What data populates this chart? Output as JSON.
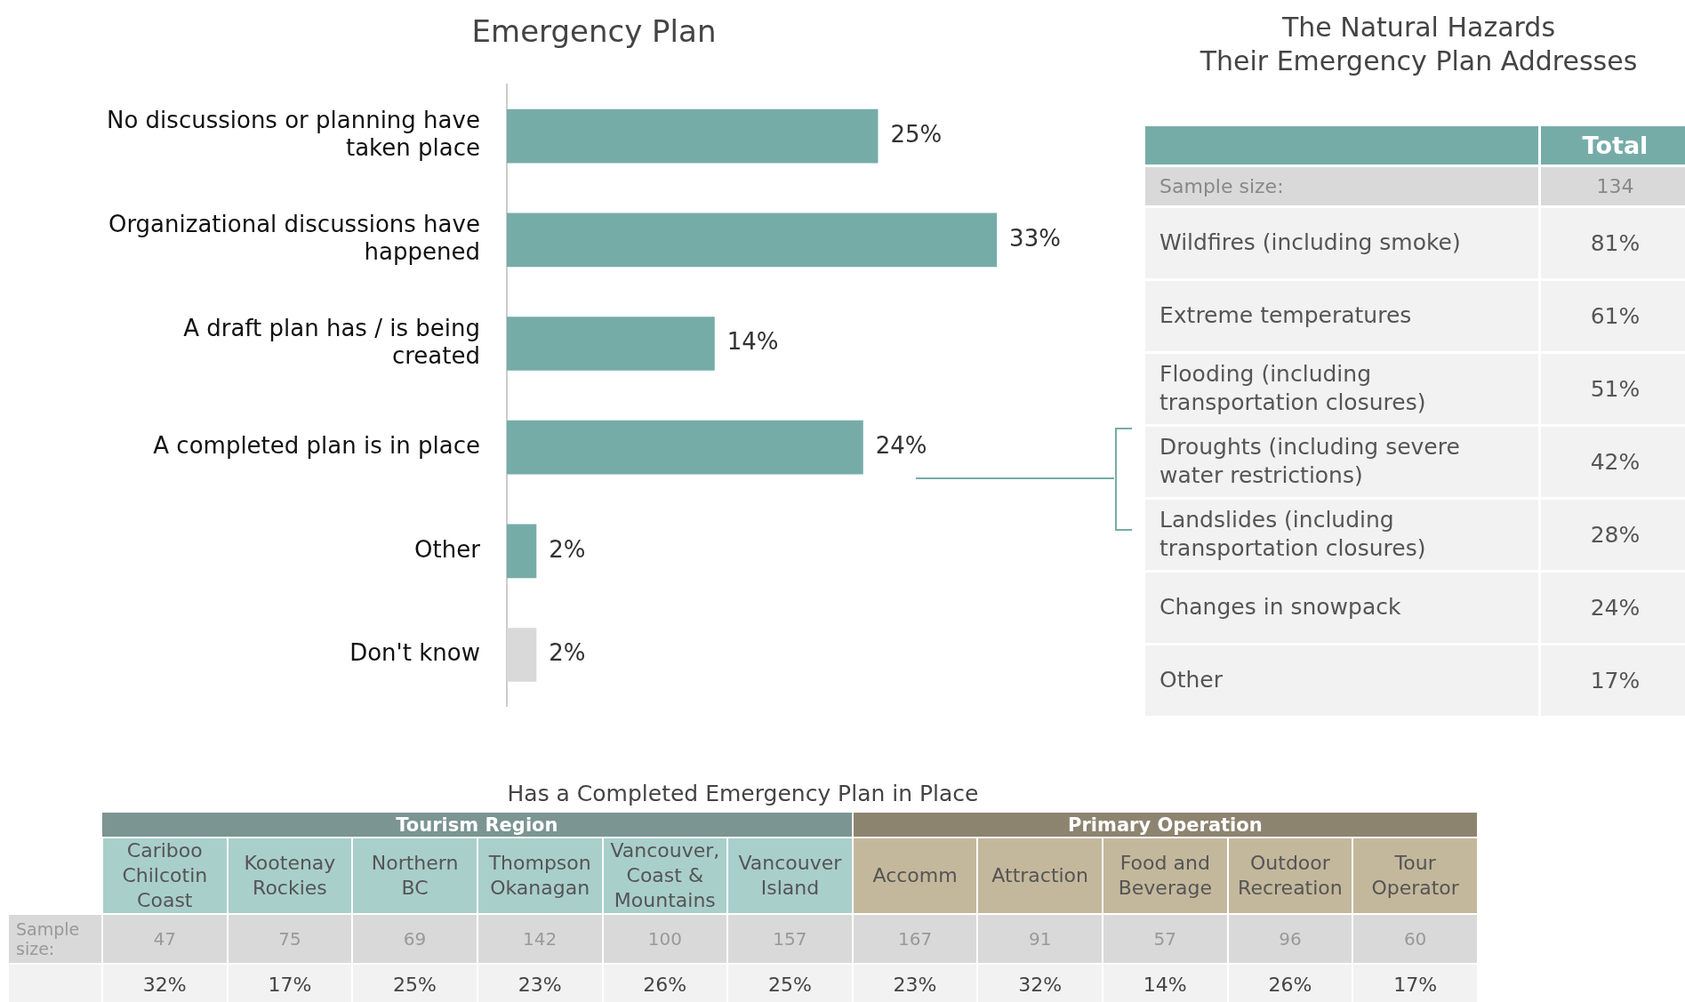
{
  "chart_data": [
    {
      "type": "bar",
      "title": "Emergency Plan",
      "orientation": "horizontal",
      "categories": [
        "No discussions or planning have taken place",
        "Organizational discussions have happened",
        "A draft plan has / is being created",
        "A completed plan is in place",
        "Other",
        "Don't know"
      ],
      "values": [
        25,
        33,
        14,
        24,
        2,
        2
      ],
      "colors": [
        "#76aca8",
        "#76aca8",
        "#76aca8",
        "#76aca8",
        "#76aca8",
        "#d9d9d9"
      ],
      "value_labels": [
        "25%",
        "33%",
        "14%",
        "24%",
        "2%",
        "2%"
      ]
    },
    {
      "type": "other",
      "title": "The Natural Hazards\nTheir Emergency Plan Addresses",
      "categories": [
        "Wildfires (including smoke)",
        "Extreme temperatures",
        "Flooding (including transportation closures)",
        "Droughts (including severe water restrictions)",
        "Landslides (including transportation closures)",
        "Changes in snowpack",
        "Other"
      ],
      "series": [
        {
          "name": "Total",
          "values": [
            81,
            61,
            51,
            42,
            28,
            24,
            17
          ],
          "value_labels": [
            "81%",
            "61%",
            "51%",
            "42%",
            "28%",
            "24%",
            "17%"
          ]
        }
      ],
      "annotations": [
        "Sample size:",
        "134"
      ]
    },
    {
      "type": "other",
      "title": "Has a Completed Emergency Plan in Place",
      "categories": [
        "Cariboo Chilcotin Coast",
        "Kootenay Rockies",
        "Northern BC",
        "Thompson Okanagan",
        "Vancouver, Coast & Mountains",
        "Vancouver Island",
        "Accomm",
        "Attraction",
        "Food and Beverage",
        "Outdoor Recreation",
        "Tour Operator"
      ],
      "colors": [
        "#a9cfcb",
        "#a9cfcb",
        "#a9cfcb",
        "#a9cfcb",
        "#a9cfcb",
        "#a9cfcb",
        "#c4b89c",
        "#c4b89c",
        "#c4b89c",
        "#c4b89c",
        "#c4b89c"
      ],
      "annotations": [
        "Tourism Region",
        "Primary Operation"
      ],
      "data_labels": true,
      "series": [
        {
          "name": "Sample size:",
          "values": [
            47,
            75,
            69,
            142,
            100,
            157,
            167,
            91,
            57,
            96,
            60
          ]
        },
        {
          "values": [
            32,
            17,
            25,
            23,
            26,
            25,
            23,
            32,
            14,
            26,
            17
          ],
          "value_labels": [
            "32%",
            "17%",
            "25%",
            "23%",
            "26%",
            "25%",
            "23%",
            "32%",
            "14%",
            "26%",
            "17%"
          ]
        }
      ]
    }
  ]
}
